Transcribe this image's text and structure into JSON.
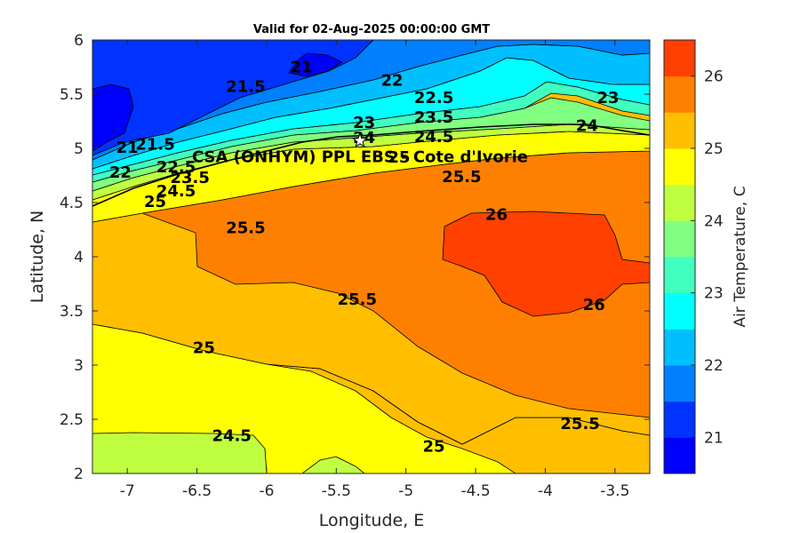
{
  "chart_data": {
    "type": "heatmap",
    "title": "Valid for 02-Aug-2025 00:00:00 GMT",
    "xlabel": "Longitude, E",
    "ylabel": "Latitude, N",
    "xlim": [
      -7.25,
      -3.25
    ],
    "ylim": [
      2,
      6
    ],
    "xticks": [
      -7,
      -6.5,
      -6,
      -5.5,
      -5,
      -4.5,
      -4,
      -3.5
    ],
    "yticks": [
      2,
      2.5,
      3,
      3.5,
      4,
      4.5,
      5,
      5.5,
      6
    ],
    "colorbar": {
      "label": "Air Temperature, C",
      "range": [
        20.5,
        26.5
      ],
      "ticks": [
        21,
        22,
        23,
        24,
        25,
        26
      ],
      "levels": [
        20.5,
        21,
        21.5,
        22,
        22.5,
        23,
        23.5,
        24,
        24.5,
        25,
        25.5,
        26,
        26.5
      ],
      "colors": [
        "#0000ff",
        "#0033ff",
        "#0080ff",
        "#00bfff",
        "#00ffff",
        "#40ffbf",
        "#80ff80",
        "#bfff40",
        "#ffff00",
        "#ffbf00",
        "#ff8000",
        "#ff4000"
      ]
    },
    "contour_labels": [
      {
        "text": "21",
        "x": -5.75,
        "y": 5.74
      },
      {
        "text": "21.5",
        "x": -6.15,
        "y": 5.56
      },
      {
        "text": "22",
        "x": -5.1,
        "y": 5.62
      },
      {
        "text": "22.5",
        "x": -4.8,
        "y": 5.46
      },
      {
        "text": "23",
        "x": -3.55,
        "y": 5.46
      },
      {
        "text": "23",
        "x": -5.3,
        "y": 5.23
      },
      {
        "text": "23.5",
        "x": -4.8,
        "y": 5.28
      },
      {
        "text": "24",
        "x": -3.7,
        "y": 5.2
      },
      {
        "text": "24",
        "x": -5.3,
        "y": 5.09
      },
      {
        "text": "24.5",
        "x": -4.8,
        "y": 5.1
      },
      {
        "text": "25",
        "x": -5.05,
        "y": 4.91
      },
      {
        "text": "21",
        "x": -7.0,
        "y": 5.0
      },
      {
        "text": "21.5",
        "x": -6.8,
        "y": 5.03
      },
      {
        "text": "22",
        "x": -7.05,
        "y": 4.77
      },
      {
        "text": "22.5",
        "x": -6.65,
        "y": 4.82
      },
      {
        "text": "23.5",
        "x": -6.55,
        "y": 4.72
      },
      {
        "text": "24.5",
        "x": -6.65,
        "y": 4.6
      },
      {
        "text": "25",
        "x": -6.8,
        "y": 4.5
      },
      {
        "text": "25.5",
        "x": -4.6,
        "y": 4.73
      },
      {
        "text": "26",
        "x": -4.35,
        "y": 4.38
      },
      {
        "text": "25.5",
        "x": -6.15,
        "y": 4.26
      },
      {
        "text": "25.5",
        "x": -5.35,
        "y": 3.6
      },
      {
        "text": "26",
        "x": -3.65,
        "y": 3.55
      },
      {
        "text": "25",
        "x": -6.45,
        "y": 3.15
      },
      {
        "text": "24.5",
        "x": -6.25,
        "y": 2.34
      },
      {
        "text": "25",
        "x": -4.8,
        "y": 2.24
      },
      {
        "text": "25.5",
        "x": -3.75,
        "y": 2.45
      }
    ],
    "site": {
      "name": "CSA (ONHYM) PPL EBS - Cote d'Ivorie",
      "x": -5.33,
      "y": 5.07
    }
  }
}
